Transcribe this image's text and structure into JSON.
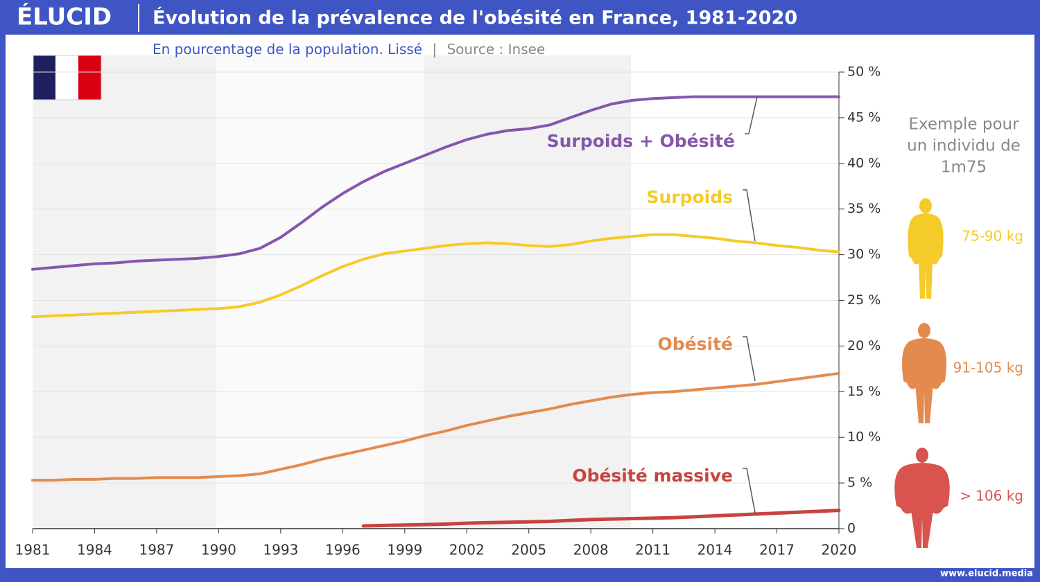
{
  "brand": "ÉLUCID",
  "footer": "www.elucid.media",
  "chart_data": {
    "type": "line",
    "title": "Évolution de la prévalence de l'obésité en France, 1981-2020",
    "subtitle": "En pourcentage de la population. Lissé",
    "separator": "|",
    "source": "Source : Insee",
    "x": [
      1981,
      1982,
      1983,
      1984,
      1985,
      1986,
      1987,
      1988,
      1989,
      1990,
      1991,
      1992,
      1993,
      1994,
      1995,
      1996,
      1997,
      1998,
      1999,
      2000,
      2001,
      2002,
      2003,
      2004,
      2005,
      2006,
      2007,
      2008,
      2009,
      2010,
      2011,
      2012,
      2013,
      2014,
      2015,
      2016,
      2017,
      2018,
      2019,
      2020
    ],
    "series": [
      {
        "name": "Surpoids + Obésité",
        "color": "#8557ab",
        "values": [
          28.4,
          28.6,
          28.8,
          29.0,
          29.1,
          29.3,
          29.4,
          29.5,
          29.6,
          29.8,
          30.1,
          30.7,
          31.9,
          33.5,
          35.2,
          36.7,
          38.0,
          39.1,
          40.0,
          40.9,
          41.8,
          42.6,
          43.2,
          43.6,
          43.8,
          44.2,
          45.0,
          45.8,
          46.5,
          46.9,
          47.1,
          47.2,
          47.3,
          47.3,
          47.3,
          47.3,
          47.3,
          47.3,
          47.3,
          47.3
        ]
      },
      {
        "name": "Surpoids",
        "color": "#f4cb2b",
        "values": [
          23.2,
          23.3,
          23.4,
          23.5,
          23.6,
          23.7,
          23.8,
          23.9,
          24.0,
          24.1,
          24.3,
          24.8,
          25.6,
          26.6,
          27.7,
          28.7,
          29.5,
          30.1,
          30.4,
          30.7,
          31.0,
          31.2,
          31.3,
          31.2,
          31.0,
          30.9,
          31.1,
          31.5,
          31.8,
          32.0,
          32.2,
          32.2,
          32.0,
          31.8,
          31.5,
          31.3,
          31.0,
          30.8,
          30.5,
          30.3
        ]
      },
      {
        "name": "Obésité",
        "color": "#e38b4f",
        "values": [
          5.3,
          5.3,
          5.4,
          5.4,
          5.5,
          5.5,
          5.6,
          5.6,
          5.6,
          5.7,
          5.8,
          6.0,
          6.5,
          7.0,
          7.6,
          8.1,
          8.6,
          9.1,
          9.6,
          10.2,
          10.7,
          11.3,
          11.8,
          12.3,
          12.7,
          13.1,
          13.6,
          14.0,
          14.4,
          14.7,
          14.9,
          15.0,
          15.2,
          15.4,
          15.6,
          15.8,
          16.1,
          16.4,
          16.7,
          17.0
        ]
      },
      {
        "name": "Obésité massive",
        "color": "#c8433f",
        "values": [
          null,
          null,
          null,
          null,
          null,
          null,
          null,
          null,
          null,
          null,
          null,
          null,
          null,
          null,
          null,
          null,
          0.3,
          0.35,
          0.4,
          0.45,
          0.5,
          0.6,
          0.65,
          0.7,
          0.75,
          0.8,
          0.9,
          1.0,
          1.05,
          1.1,
          1.15,
          1.2,
          1.3,
          1.4,
          1.5,
          1.6,
          1.7,
          1.8,
          1.9,
          2.0
        ]
      }
    ],
    "xlim": [
      1981,
      2020
    ],
    "xticks": [
      1981,
      1984,
      1987,
      1990,
      1993,
      1996,
      1999,
      2002,
      2005,
      2008,
      2011,
      2014,
      2017,
      2020
    ],
    "ylim": [
      0,
      50
    ],
    "yticks": [
      0,
      {
        "value": 5,
        "label": "5 %"
      },
      {
        "value": 10,
        "label": "10 %"
      },
      {
        "value": 15,
        "label": "15 %"
      },
      {
        "value": 20,
        "label": "20 %"
      },
      {
        "value": 25,
        "label": "25 %"
      },
      {
        "value": 30,
        "label": "30 %"
      },
      {
        "value": 35,
        "label": "35 %"
      },
      {
        "value": 40,
        "label": "40 %"
      },
      {
        "value": 45,
        "label": "45 %"
      },
      {
        "value": 50,
        "label": "50 %"
      }
    ],
    "grid": true,
    "example": {
      "title_lines": [
        "Exemple pour",
        "un individu de",
        "1m75"
      ],
      "figures": [
        {
          "label": "75-90 kg",
          "color": "#f4cb2b"
        },
        {
          "label": "91-105 kg",
          "color": "#e38b4f"
        },
        {
          "label": "> 106 kg",
          "color": "#d9534f"
        }
      ]
    }
  }
}
